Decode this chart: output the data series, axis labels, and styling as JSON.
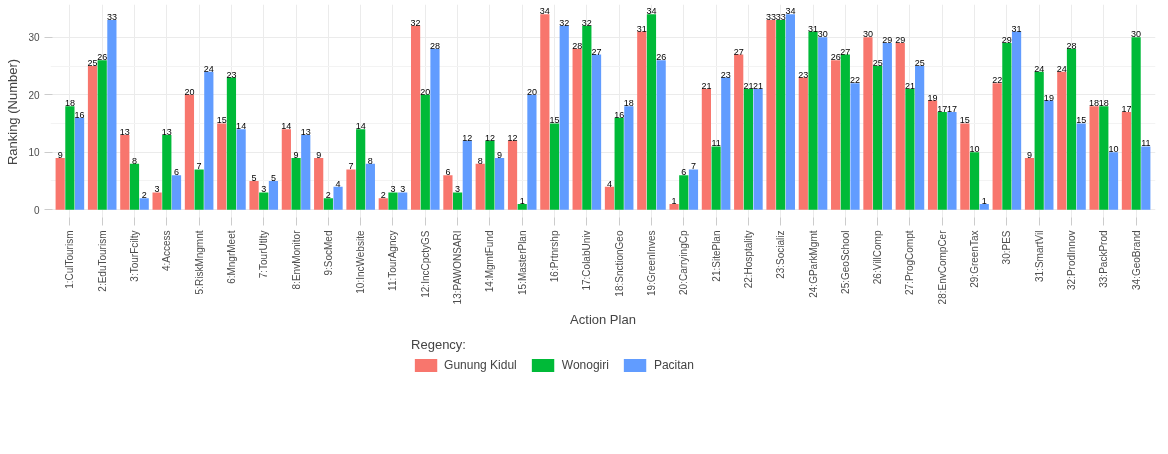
{
  "chart_data": {
    "type": "bar",
    "xlabel": "Action Plan",
    "ylabel": "Ranking (Number)",
    "legend_title": "Regency:",
    "legend": "bottom",
    "grid": true,
    "data_labels": true,
    "categories": [
      "1:CulTourism",
      "2:EduTourism",
      "3:TourFcilty",
      "4:Access",
      "5:RiskMngmnt",
      "6:MngrMeet",
      "7:TourUtlty",
      "8:EnvMonitor",
      "9:SocMed",
      "10:IncWebsite",
      "11:TourAgncy",
      "12:IncCpctyGS",
      "13:PAWONSARI",
      "14:MgmtFund",
      "15:MasterPlan",
      "16:Prtnrshp",
      "17:ColabUniv",
      "18:SnctionGeo",
      "19:GreenInves",
      "20:CarryingCp",
      "21:SitePlan",
      "22:Hosptality",
      "23:Socializ",
      "24:GParkMgmt",
      "25:GeoSchool",
      "26:VillComp",
      "27:ProgCompt",
      "28:EnvCompCer",
      "29:GreenTax",
      "30:PES",
      "31:SmartVil",
      "32:ProdInnov",
      "33:PackProd",
      "34:GeoBrand"
    ],
    "ylim": [
      -1.7,
      35.7
    ],
    "yticks": [
      0,
      10,
      20,
      30
    ],
    "series": [
      {
        "name": "Gunung Kidul",
        "color": "#f8766d",
        "values": [
          9,
          25,
          13,
          3,
          20,
          15,
          5,
          14,
          9,
          7,
          2,
          32,
          6,
          8,
          12,
          34,
          28,
          4,
          31,
          1,
          21,
          27,
          33,
          23,
          26,
          30,
          29,
          19,
          15,
          22,
          9,
          24,
          18,
          17
        ]
      },
      {
        "name": "Wonogiri",
        "color": "#00ba38",
        "values": [
          18,
          26,
          8,
          13,
          7,
          23,
          3,
          9,
          2,
          14,
          3,
          20,
          3,
          12,
          1,
          15,
          32,
          16,
          34,
          6,
          11,
          21,
          33,
          31,
          27,
          25,
          21,
          17,
          10,
          29,
          24,
          28,
          18,
          30
        ]
      },
      {
        "name": "Pacitan",
        "color": "#619cff",
        "values": [
          16,
          33,
          2,
          6,
          24,
          14,
          5,
          13,
          4,
          8,
          3,
          28,
          12,
          9,
          20,
          32,
          27,
          18,
          26,
          7,
          23,
          21,
          34,
          30,
          22,
          29,
          25,
          17,
          1,
          31,
          19,
          15,
          10,
          11
        ]
      }
    ]
  }
}
